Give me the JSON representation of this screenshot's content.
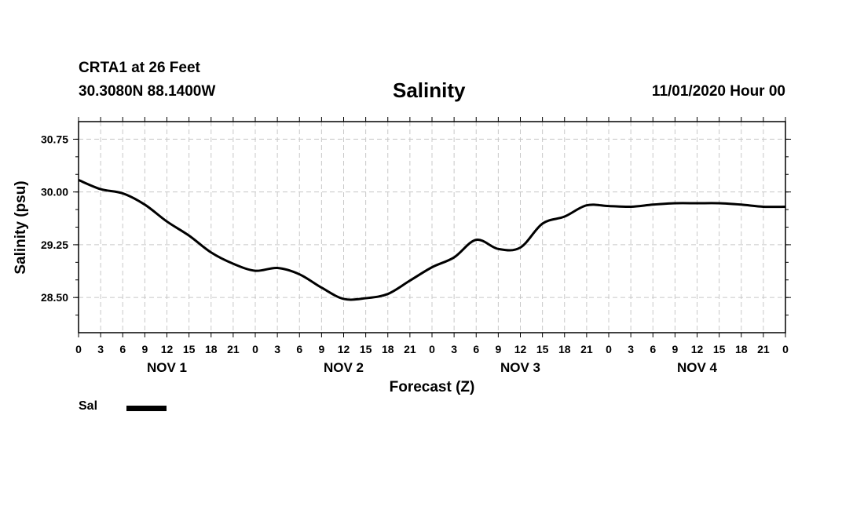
{
  "header": {
    "station": "CRTA1 at 26 Feet",
    "coords": "30.3080N 88.1400W",
    "title": "Salinity",
    "datetime": "11/01/2020 Hour 00"
  },
  "chart_data": {
    "type": "line",
    "title": "Salinity",
    "xlabel": "Forecast (Z)",
    "ylabel": "Salinity (psu)",
    "ylim": [
      28.0,
      31.0
    ],
    "yticks": [
      "30.75",
      "30.00",
      "29.25",
      "28.50"
    ],
    "ytick_values": [
      30.75,
      30.0,
      29.25,
      28.5
    ],
    "xlim": [
      0,
      96
    ],
    "xtick_labels": [
      "0",
      "3",
      "6",
      "9",
      "12",
      "15",
      "18",
      "21",
      "0",
      "3",
      "6",
      "9",
      "12",
      "15",
      "18",
      "21",
      "0",
      "3",
      "6",
      "9",
      "12",
      "15",
      "18",
      "21",
      "0",
      "3",
      "6",
      "9",
      "12",
      "15",
      "18",
      "21",
      "0"
    ],
    "day_labels": [
      {
        "label": "NOV 1",
        "hour": 12
      },
      {
        "label": "NOV 2",
        "hour": 36
      },
      {
        "label": "NOV 3",
        "hour": 60
      },
      {
        "label": "NOV 4",
        "hour": 84
      }
    ],
    "grid": true,
    "series": [
      {
        "name": "Sal",
        "color": "#000000",
        "x": [
          0,
          3,
          6,
          9,
          12,
          15,
          18,
          21,
          24,
          27,
          30,
          33,
          36,
          39,
          42,
          45,
          48,
          51,
          54,
          57,
          60,
          63,
          66,
          69,
          72,
          75,
          78,
          81,
          84,
          87,
          90,
          93,
          96
        ],
        "y": [
          30.17,
          30.04,
          29.98,
          29.82,
          29.58,
          29.38,
          29.14,
          28.98,
          28.88,
          28.92,
          28.83,
          28.64,
          28.48,
          28.49,
          28.55,
          28.74,
          28.93,
          29.07,
          29.32,
          29.19,
          29.21,
          29.55,
          29.65,
          29.81,
          29.8,
          29.79,
          29.82,
          29.84,
          29.84,
          29.84,
          29.82,
          29.79,
          29.79
        ]
      }
    ],
    "legend": [
      {
        "label": "Sal",
        "color": "#000000"
      }
    ],
    "legend_position": "bottom-left"
  }
}
